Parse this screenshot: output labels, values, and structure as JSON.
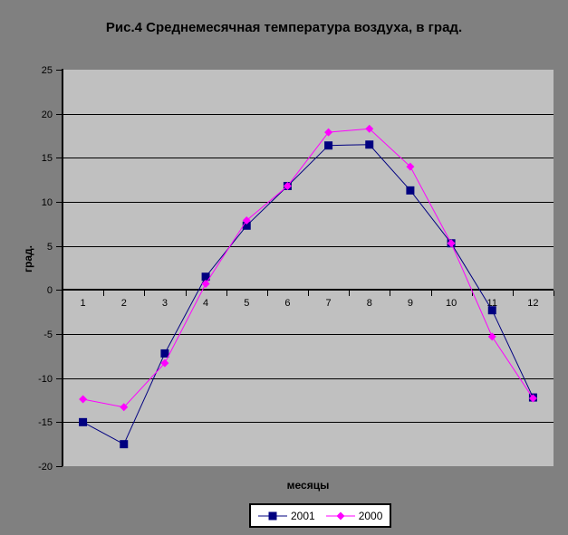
{
  "chart_data": {
    "type": "line",
    "title": "Рис.4 Среднемесячная температура воздуха, в град.",
    "xlabel": "месяцы",
    "ylabel": "град.",
    "x": [
      1,
      2,
      3,
      4,
      5,
      6,
      7,
      8,
      9,
      10,
      11,
      12
    ],
    "series": [
      {
        "name": "2001",
        "color": "#000080",
        "marker": "square",
        "values": [
          -15,
          -17.5,
          -7.2,
          1.5,
          7.3,
          11.8,
          16.4,
          16.5,
          11.3,
          5.3,
          -2.3,
          -12.2
        ]
      },
      {
        "name": "2000",
        "color": "#FF00FF",
        "marker": "diamond",
        "values": [
          -12.4,
          -13.3,
          -8.3,
          0.7,
          7.9,
          11.8,
          17.9,
          18.3,
          14.0,
          5.3,
          -5.3,
          -12.3
        ]
      }
    ],
    "ylim": [
      -20,
      25
    ],
    "yticks": [
      25,
      20,
      15,
      10,
      5,
      0,
      -5,
      -10,
      -15,
      -20
    ],
    "grid": true,
    "legend_position": "bottom",
    "chart_background": "#808080",
    "plot_background": "#C0C0C0",
    "axis_color": "#000000",
    "legend_background": "#FFFFFF"
  }
}
